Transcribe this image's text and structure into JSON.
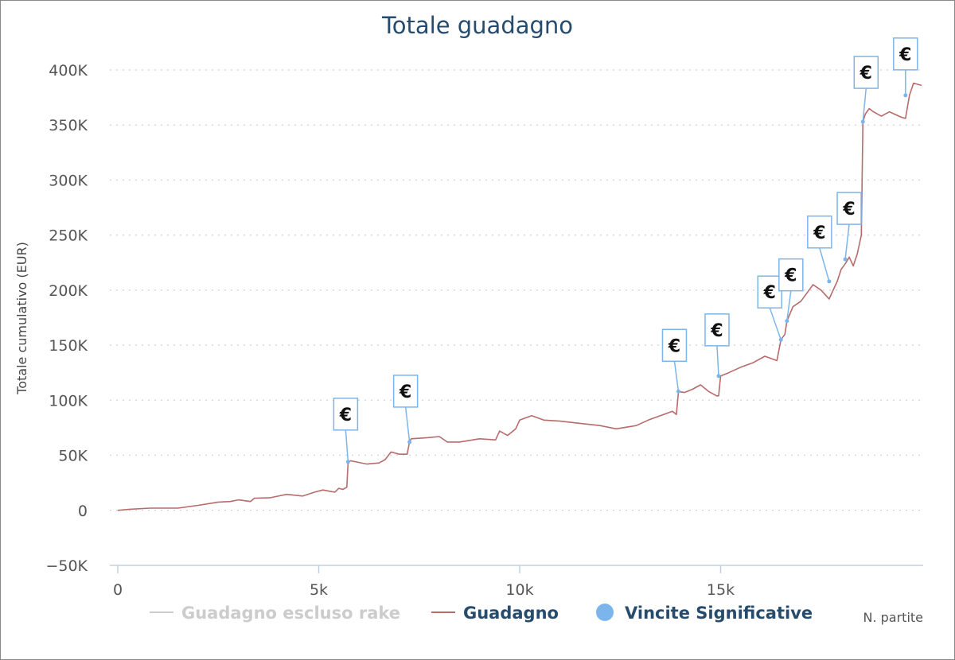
{
  "chart_data": {
    "type": "line",
    "title": "Totale guadagno",
    "xlabel": "N. partite",
    "ylabel": "Totale cumulativo (EUR)",
    "xlim": [
      0,
      20000
    ],
    "ylim": [
      -50000,
      400000
    ],
    "x_ticks": [
      {
        "value": 0,
        "label": "0"
      },
      {
        "value": 5000,
        "label": "5k"
      },
      {
        "value": 10000,
        "label": "10k"
      },
      {
        "value": 15000,
        "label": "15k"
      }
    ],
    "y_ticks": [
      {
        "value": -50000,
        "label": "−50K"
      },
      {
        "value": 0,
        "label": "0"
      },
      {
        "value": 50000,
        "label": "50K"
      },
      {
        "value": 100000,
        "label": "100K"
      },
      {
        "value": 150000,
        "label": "150K"
      },
      {
        "value": 200000,
        "label": "200K"
      },
      {
        "value": 250000,
        "label": "250K"
      },
      {
        "value": 300000,
        "label": "300K"
      },
      {
        "value": 350000,
        "label": "350K"
      },
      {
        "value": 400000,
        "label": "400K"
      }
    ],
    "grid": "horizontal dotted",
    "legend_position": "bottom",
    "series": [
      {
        "name": "Guadagno escluso rake",
        "color": "#cccccc",
        "visible": false,
        "x": [],
        "y": []
      },
      {
        "name": "Guadagno",
        "color": "#b76b6b",
        "visible": true,
        "x": [
          0,
          300,
          800,
          1500,
          2000,
          2500,
          2800,
          3000,
          3300,
          3400,
          3800,
          4200,
          4600,
          4900,
          5100,
          5400,
          5500,
          5600,
          5700,
          5730,
          5800,
          6200,
          6500,
          6650,
          6800,
          7000,
          7200,
          7260,
          7300,
          7700,
          8000,
          8200,
          8500,
          9000,
          9400,
          9500,
          9700,
          9900,
          10000,
          10300,
          10600,
          11000,
          11500,
          12000,
          12400,
          12900,
          13200,
          13500,
          13800,
          13900,
          13950,
          14100,
          14300,
          14500,
          14700,
          14900,
          14950,
          15000,
          15200,
          15500,
          15800,
          16100,
          16400,
          16500,
          16600,
          16650,
          16800,
          17000,
          17300,
          17500,
          17600,
          17700,
          17900,
          18000,
          18100,
          18200,
          18300,
          18400,
          18500,
          18540,
          18600,
          18700,
          18800,
          19000,
          19200,
          19500,
          19600,
          19700,
          19800,
          20000
        ],
        "y": [
          0,
          1000,
          2000,
          2000,
          4500,
          7500,
          8000,
          9500,
          8000,
          11000,
          11500,
          14500,
          13000,
          16500,
          18500,
          16500,
          20000,
          19000,
          21000,
          44000,
          45000,
          42000,
          43000,
          46000,
          53000,
          51000,
          51000,
          62000,
          65000,
          66000,
          67000,
          62000,
          62000,
          65000,
          64000,
          72000,
          68000,
          74000,
          82000,
          86000,
          82000,
          81000,
          79000,
          77000,
          74000,
          77000,
          82000,
          86000,
          90000,
          87000,
          108000,
          107000,
          110000,
          114000,
          108000,
          104000,
          104000,
          122000,
          125000,
          130000,
          134000,
          140000,
          136000,
          155000,
          160000,
          172000,
          185000,
          190000,
          205000,
          200000,
          196000,
          192000,
          208000,
          219000,
          224000,
          230000,
          222000,
          233000,
          250000,
          353000,
          360000,
          365000,
          362000,
          358000,
          362000,
          357000,
          356000,
          377000,
          388000,
          386000
        ]
      },
      {
        "name": "Vincite Significative",
        "color": "#7cb5ec",
        "visible": true,
        "type": "flags",
        "flag_label": "€",
        "x": [
          5730,
          7260,
          13950,
          14950,
          16500,
          16650,
          17700,
          18100,
          18540,
          19600
        ],
        "y": [
          44000,
          62000,
          108000,
          122000,
          155000,
          172000,
          208000,
          228000,
          353000,
          377000
        ]
      }
    ]
  }
}
